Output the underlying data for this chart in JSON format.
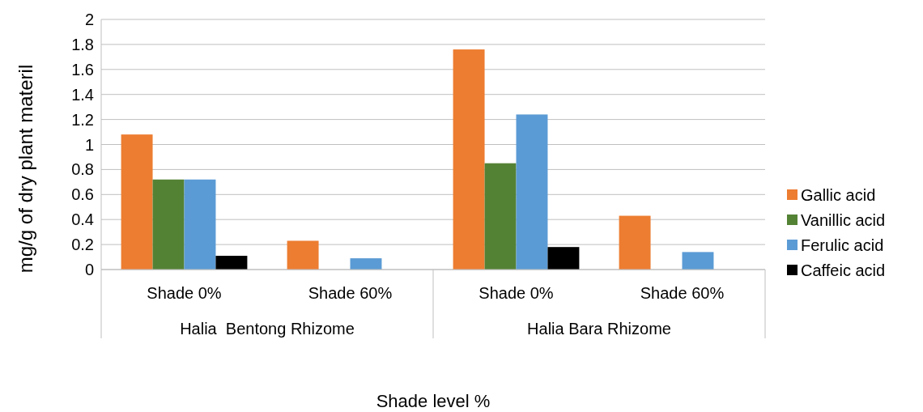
{
  "chart_data": {
    "type": "bar",
    "ylabel": "mg/g  of dry plant materil",
    "xlabel": "Shade level %",
    "categories": [
      "Shade 0%",
      "Shade 60%",
      "Shade 0%",
      "Shade 60%"
    ],
    "annotations": [
      "Halia  Bentong Rhizome",
      "Halia Bara Rhizome"
    ],
    "series": [
      {
        "name": "Gallic acid",
        "color": "#ed7d31",
        "values": [
          1.08,
          0.23,
          1.76,
          0.43
        ]
      },
      {
        "name": "Vanillic acid",
        "color": "#548235",
        "values": [
          0.72,
          null,
          0.85,
          null
        ]
      },
      {
        "name": "Ferulic acid",
        "color": "#5b9bd5",
        "values": [
          0.72,
          0.09,
          1.24,
          0.14
        ]
      },
      {
        "name": "Caffeic acid",
        "color": "#000000",
        "values": [
          0.11,
          null,
          0.18,
          null
        ]
      }
    ],
    "ylim": [
      0,
      2
    ],
    "yticks": [
      0,
      0.2,
      0.4,
      0.6,
      0.8,
      1,
      1.2,
      1.4,
      1.6,
      1.8,
      2
    ],
    "grid": "y",
    "legend": "right"
  }
}
